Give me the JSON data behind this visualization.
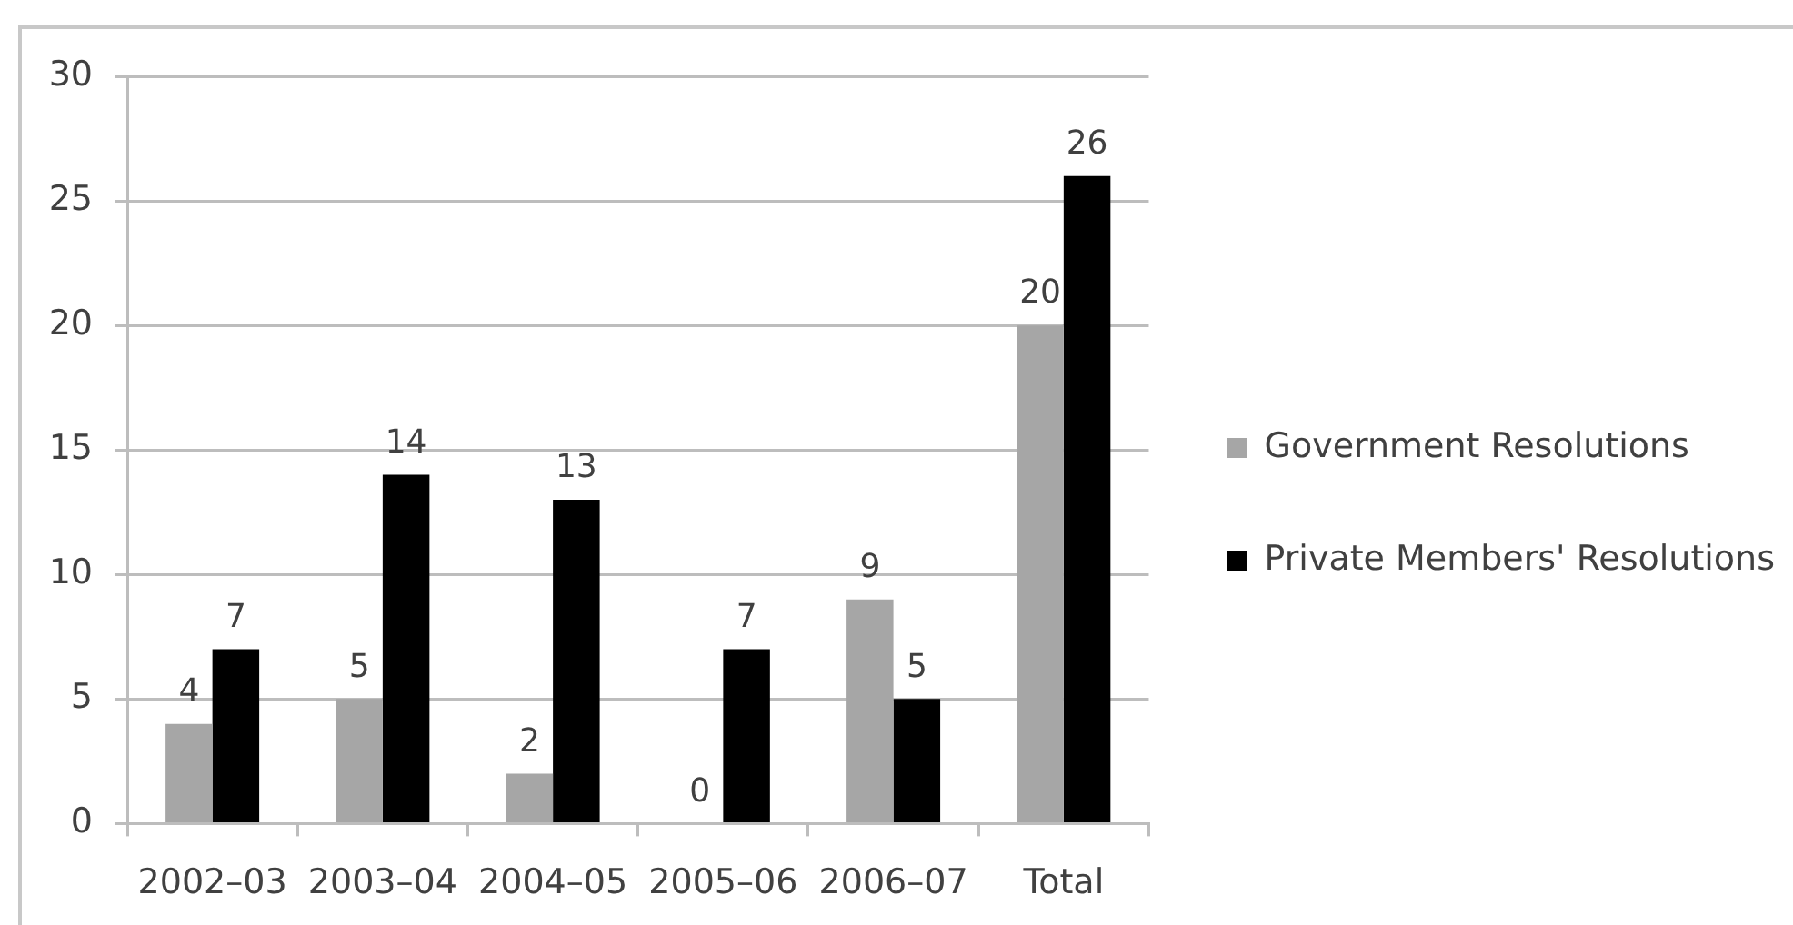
{
  "chart_data": {
    "type": "bar",
    "categories": [
      "2002–03",
      "2003–04",
      "2004–05",
      "2005–06",
      "2006–07",
      "Total"
    ],
    "series": [
      {
        "name": "Government Resolutions",
        "color": "#a6a6a6",
        "values": [
          4,
          5,
          2,
          0,
          9,
          20
        ]
      },
      {
        "name": "Private Members' Resolutions",
        "color": "#000000",
        "values": [
          7,
          14,
          13,
          7,
          5,
          26
        ]
      }
    ],
    "ylim": [
      0,
      30
    ],
    "yticks": [
      0,
      5,
      10,
      15,
      20,
      25,
      30
    ],
    "grid": "y",
    "legend": "right",
    "data_labels": true
  }
}
